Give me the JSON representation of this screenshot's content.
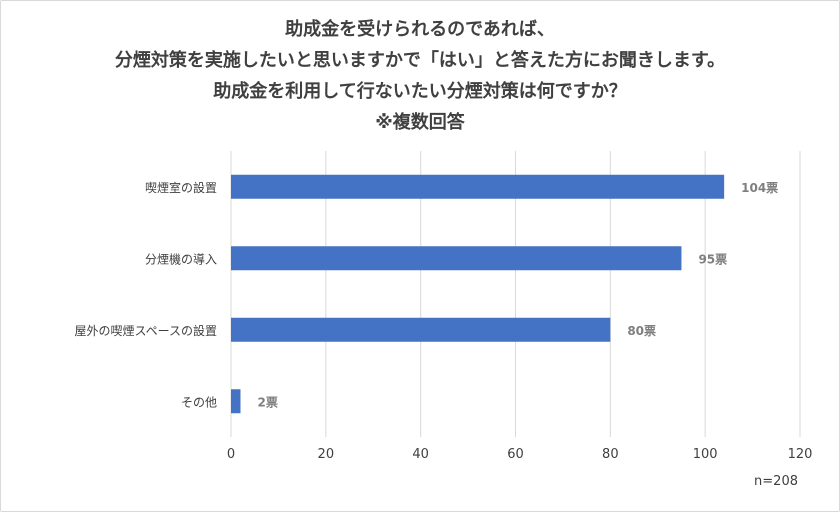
{
  "title_lines": [
    "助成金を受けられるのであれば、",
    "分煙対策を実施したいと思いますかで「はい」と答えた方にお聞きします。",
    "助成金を利用して行ないたい分煙対策は何ですか？",
    "※複数回答"
  ],
  "note": "n=208",
  "colors": {
    "bar": "#4472c4",
    "grid": "#d9d9d9",
    "label": "#7f7f7f",
    "text": "#404040"
  },
  "chart_data": {
    "type": "bar",
    "orientation": "horizontal",
    "categories": [
      "喫煙室の設置",
      "分煙機の導入",
      "屋外の喫煙スペースの設置",
      "その他"
    ],
    "values": [
      104,
      95,
      80,
      2
    ],
    "data_labels": [
      "104票",
      "95票",
      "80票",
      "2票"
    ],
    "xlim": [
      0,
      120
    ],
    "xticks": [
      0,
      20,
      40,
      60,
      80,
      100,
      120
    ],
    "grid": true,
    "legend": "none"
  }
}
